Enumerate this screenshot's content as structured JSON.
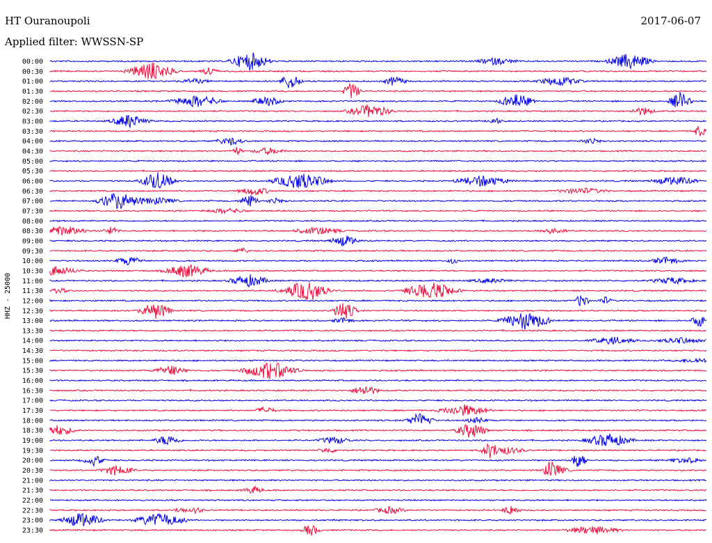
{
  "header": {
    "station": "HT Ouranoupoli",
    "date": "2017-06-07",
    "filter": "Applied filter: WWSSN-SP"
  },
  "chart_data": {
    "type": "line",
    "ylabel": "HHZ - 25000",
    "row_labels": [
      "00:00",
      "00:30",
      "01:00",
      "01:30",
      "02:00",
      "02:30",
      "03:00",
      "03:30",
      "04:00",
      "04:30",
      "05:00",
      "05:30",
      "06:00",
      "06:30",
      "07:00",
      "07:30",
      "08:00",
      "08:30",
      "09:00",
      "09:30",
      "10:00",
      "10:30",
      "11:00",
      "11:30",
      "12:00",
      "12:30",
      "13:00",
      "13:30",
      "14:00",
      "14:30",
      "15:00",
      "15:30",
      "16:00",
      "16:30",
      "17:00",
      "17:30",
      "18:00",
      "18:30",
      "19:00",
      "19:30",
      "20:00",
      "20:30",
      "21:00",
      "21:30",
      "22:00",
      "22:30",
      "23:00",
      "23:30"
    ],
    "colors": [
      "#0000e0",
      "#e8103c"
    ],
    "grid": false
  }
}
